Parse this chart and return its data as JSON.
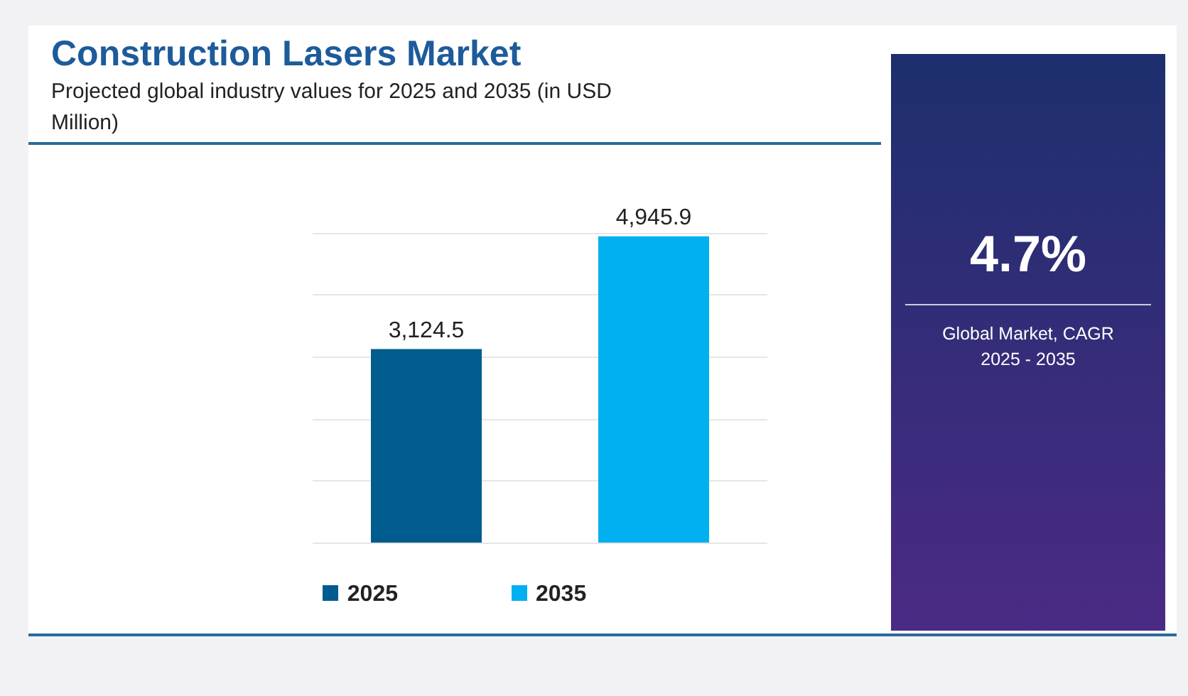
{
  "chart_data": {
    "type": "bar",
    "title": "Construction Lasers Market",
    "subtitle": "Projected global industry values for 2025 and 2035 (in USD Million)",
    "categories": [
      "2025",
      "2035"
    ],
    "values": [
      3124.5,
      4945.9
    ],
    "colors": [
      "#005b8e",
      "#00b0f0"
    ],
    "value_labels": [
      "3,124.5",
      "4,945.9"
    ],
    "tick_labels": "x",
    "grid": "y",
    "annotations": [
      "4.7%",
      "Global Market, CAGR 2025 - 2035"
    ]
  }
}
